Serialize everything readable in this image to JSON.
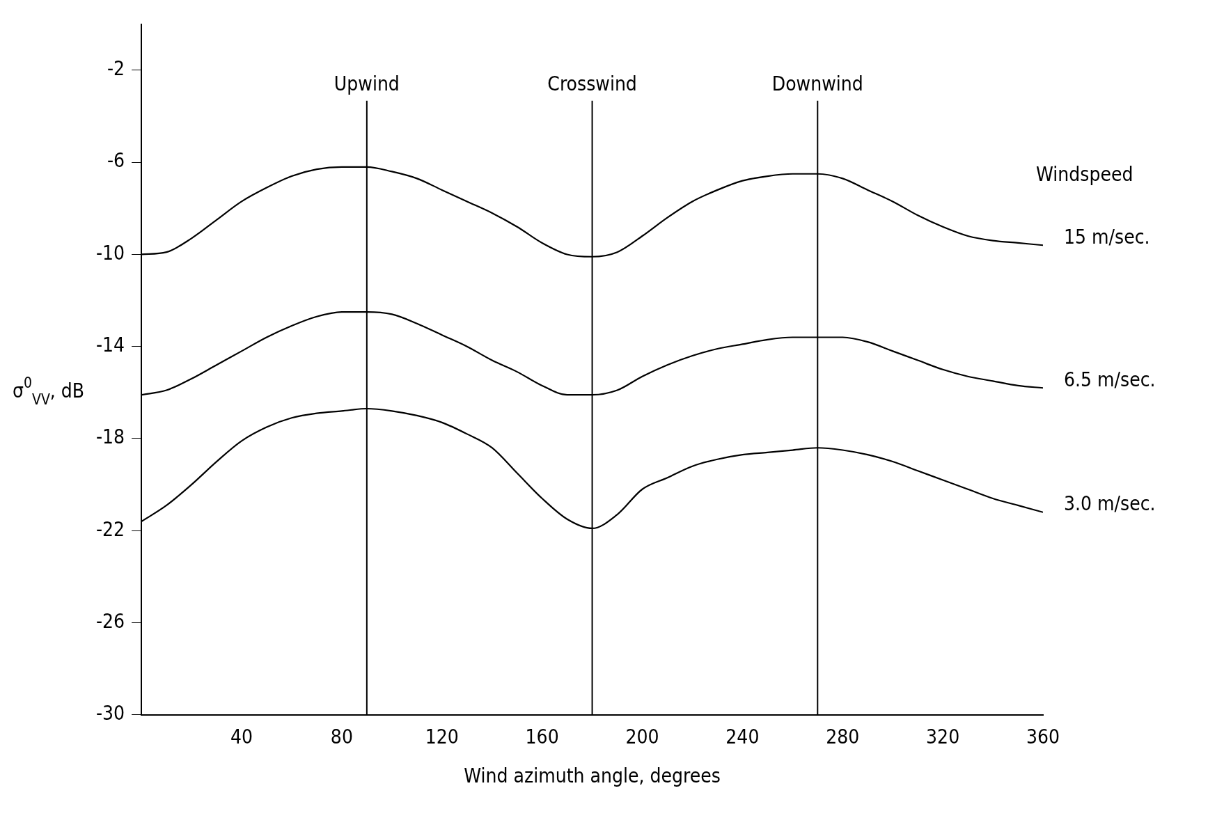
{
  "chart_data": {
    "type": "line",
    "xlabel": "Wind azimuth angle, degrees",
    "ylabel": "σ$^{0}$$_{VV}$, dB",
    "legend_title": "Windspeed",
    "x": [
      0,
      10,
      20,
      30,
      40,
      50,
      60,
      70,
      80,
      90,
      100,
      110,
      120,
      130,
      140,
      150,
      160,
      170,
      180,
      190,
      200,
      210,
      220,
      230,
      240,
      250,
      260,
      270,
      280,
      290,
      300,
      310,
      320,
      330,
      340,
      350,
      360
    ],
    "series": [
      {
        "name": "15 m/sec.",
        "color": "#000000",
        "values": [
          -10,
          -9.9,
          -9.3,
          -8.5,
          -7.7,
          -7.1,
          -6.6,
          -6.3,
          -6.2,
          -6.2,
          -6.4,
          -6.7,
          -7.2,
          -7.7,
          -8.2,
          -8.8,
          -9.5,
          -10,
          -10.1,
          -9.9,
          -9.2,
          -8.4,
          -7.7,
          -7.2,
          -6.8,
          -6.6,
          -6.5,
          -6.5,
          -6.7,
          -7.2,
          -7.7,
          -8.3,
          -8.8,
          -9.2,
          -9.4,
          -9.5,
          -9.6
        ]
      },
      {
        "name": "6.5 m/sec.",
        "color": "#000000",
        "values": [
          -16.1,
          -15.9,
          -15.4,
          -14.8,
          -14.2,
          -13.6,
          -13.1,
          -12.7,
          -12.5,
          -12.5,
          -12.6,
          -13,
          -13.5,
          -14,
          -14.6,
          -15.1,
          -15.7,
          -16.1,
          -16.1,
          -15.9,
          -15.3,
          -14.8,
          -14.4,
          -14.1,
          -13.9,
          -13.7,
          -13.6,
          -13.6,
          -13.6,
          -13.8,
          -14.2,
          -14.6,
          -15,
          -15.3,
          -15.5,
          -15.7,
          -15.8
        ]
      },
      {
        "name": "3.0 m/sec.",
        "color": "#000000",
        "values": [
          -21.6,
          -20.9,
          -20,
          -19,
          -18.1,
          -17.5,
          -17.1,
          -16.9,
          -16.8,
          -16.7,
          -16.8,
          -17,
          -17.3,
          -17.8,
          -18.4,
          -19.5,
          -20.6,
          -21.5,
          -21.9,
          -21.3,
          -20.2,
          -19.7,
          -19.2,
          -18.9,
          -18.7,
          -18.6,
          -18.5,
          -18.4,
          -18.5,
          -18.7,
          -19,
          -19.4,
          -19.8,
          -20.2,
          -20.6,
          -20.9,
          -21.2
        ]
      }
    ],
    "xlim": [
      0,
      360
    ],
    "xticks": [
      40,
      80,
      120,
      160,
      200,
      240,
      280,
      320,
      360
    ],
    "ylim": [
      -30,
      0
    ],
    "yticks": [
      -30,
      -26,
      -22,
      -18,
      -14,
      -10,
      -6,
      -2
    ],
    "ref_lines": [
      {
        "axis": "x",
        "value": 90,
        "label": "Upwind",
        "color": "#000000"
      },
      {
        "axis": "x",
        "value": 180,
        "label": "Crosswind",
        "color": "#000000"
      },
      {
        "axis": "x",
        "value": 270,
        "label": "Downwind",
        "color": "#000000"
      }
    ],
    "grid": false,
    "legend": false,
    "marker": "none",
    "line_style": "solid"
  }
}
